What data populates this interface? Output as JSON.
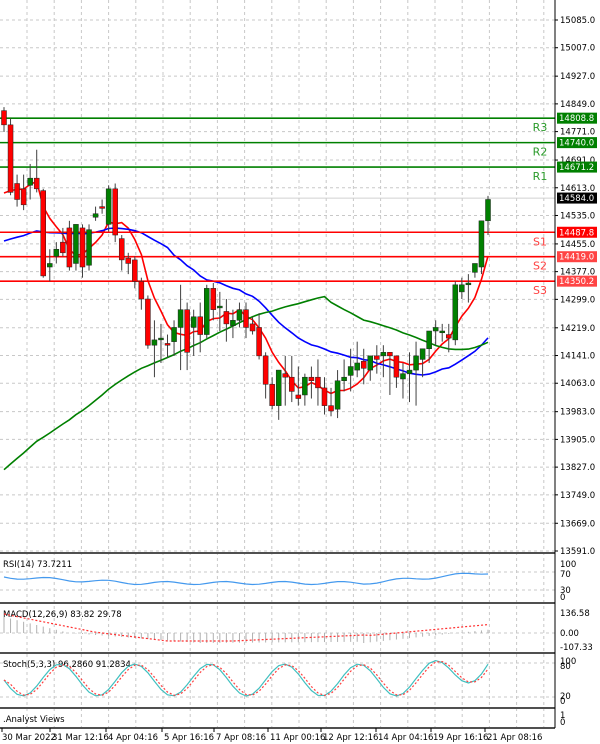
{
  "chart_data": {
    "type": "candlestick",
    "title": "",
    "price_axis": {
      "ticks": [
        15085.0,
        15007.0,
        14927.0,
        14849.0,
        14771.0,
        14691.0,
        14613.0,
        14535.0,
        14455.0,
        14377.0,
        14299.0,
        14219.0,
        14141.0,
        14063.0,
        13983.0,
        13905.0,
        13827.0,
        13749.0,
        13669.0,
        13591.0
      ],
      "range": [
        13591.0,
        15140.0
      ]
    },
    "current_price": 14584.0,
    "levels": [
      {
        "name": "R3",
        "value": 14808.8,
        "color": "#008000",
        "type": "resistance"
      },
      {
        "name": "R2",
        "value": 14740.0,
        "color": "#008000",
        "type": "resistance"
      },
      {
        "name": "R1",
        "value": 14671.2,
        "color": "#008000",
        "type": "resistance"
      },
      {
        "name": "S1",
        "value": 14487.8,
        "color": "#ff0000",
        "type": "support"
      },
      {
        "name": "S2",
        "value": 14419.0,
        "color": "#ff0000",
        "type": "support"
      },
      {
        "name": "S3",
        "value": 14350.2,
        "color": "#ff0000",
        "type": "support"
      }
    ],
    "time_axis": [
      "30 Mar 2022",
      "31 Mar 12:16",
      "4 Apr 04:16",
      "5 Apr 16:16",
      "7 Apr 08:16",
      "11 Apr 00:16",
      "12 Apr 12:16",
      "14 Apr 04:16",
      "19 Apr 16:16",
      "21 Apr 08:16"
    ],
    "candles": [
      [
        14830,
        14840,
        14790,
        14770
      ],
      [
        14790,
        14808,
        14600,
        14592
      ],
      [
        14625,
        14650,
        14580,
        14560
      ],
      [
        14610,
        14650,
        14565,
        14550
      ],
      [
        14620,
        14680,
        14640,
        14580
      ],
      [
        14640,
        14720,
        14610,
        14600
      ],
      [
        14605,
        14610,
        14365,
        14360
      ],
      [
        14390,
        14440,
        14400,
        14350
      ],
      [
        14420,
        14460,
        14440,
        14400
      ],
      [
        14460,
        14500,
        14430,
        14420
      ],
      [
        14500,
        14520,
        14390,
        14380
      ],
      [
        14400,
        14510,
        14510,
        14380
      ],
      [
        14500,
        14510,
        14390,
        14360
      ],
      [
        14395,
        14510,
        14495,
        14380
      ],
      [
        14530,
        14560,
        14540,
        14520
      ],
      [
        14560,
        14580,
        14555,
        14540
      ],
      [
        14510,
        14620,
        14610,
        14490
      ],
      [
        14610,
        14625,
        14480,
        14460
      ],
      [
        14470,
        14480,
        14410,
        14380
      ],
      [
        14415,
        14430,
        14400,
        14370
      ],
      [
        14410,
        14420,
        14350,
        14330
      ],
      [
        14350,
        14360,
        14300,
        14270
      ],
      [
        14300,
        14310,
        14170,
        14160
      ],
      [
        14170,
        14240,
        14185,
        14080
      ],
      [
        14185,
        14230,
        14190,
        14120
      ],
      [
        14175,
        14200,
        14170,
        14135
      ],
      [
        14180,
        14240,
        14220,
        14140
      ],
      [
        14220,
        14340,
        14270,
        14100
      ],
      [
        14270,
        14290,
        14150,
        14100
      ],
      [
        14220,
        14270,
        14250,
        14140
      ],
      [
        14250,
        14290,
        14200,
        14150
      ],
      [
        14200,
        14340,
        14330,
        14190
      ],
      [
        14330,
        14345,
        14270,
        14240
      ],
      [
        14275,
        14320,
        14280,
        14210
      ],
      [
        14265,
        14300,
        14230,
        14180
      ],
      [
        14225,
        14270,
        14240,
        14190
      ],
      [
        14240,
        14290,
        14270,
        14220
      ],
      [
        14270,
        14290,
        14220,
        14190
      ],
      [
        14230,
        14250,
        14210,
        14200
      ],
      [
        14220,
        14260,
        14140,
        14130
      ],
      [
        14140,
        14150,
        14060,
        14020
      ],
      [
        14060,
        14080,
        14000,
        13990
      ],
      [
        14000,
        14090,
        14100,
        13960
      ],
      [
        14090,
        14140,
        14080,
        14000
      ],
      [
        14080,
        14140,
        14040,
        14010
      ],
      [
        14030,
        14110,
        14020,
        14000
      ],
      [
        14030,
        14090,
        14080,
        14000
      ],
      [
        14080,
        14110,
        14070,
        14020
      ],
      [
        14080,
        14130,
        14050,
        14000
      ],
      [
        14050,
        14080,
        14000,
        13975
      ],
      [
        14000,
        14050,
        13985,
        13970
      ],
      [
        13990,
        14100,
        14070,
        13965
      ],
      [
        14070,
        14130,
        14080,
        14040
      ],
      [
        14085,
        14160,
        14110,
        14040
      ],
      [
        14100,
        14180,
        14120,
        14080
      ],
      [
        14125,
        14160,
        14105,
        14060
      ],
      [
        14100,
        14130,
        14140,
        14070
      ],
      [
        14140,
        14170,
        14130,
        14090
      ],
      [
        14140,
        14170,
        14150,
        14080
      ],
      [
        14150,
        14150,
        14140,
        14030
      ],
      [
        14140,
        14140,
        14080,
        14050
      ],
      [
        14075,
        14120,
        14090,
        14020
      ],
      [
        14090,
        14150,
        14100,
        14010
      ],
      [
        14100,
        14180,
        14140,
        14000
      ],
      [
        14130,
        14150,
        14160,
        14080
      ],
      [
        14160,
        14200,
        14210,
        14120
      ],
      [
        14210,
        14240,
        14220,
        14170
      ],
      [
        14205,
        14230,
        14210,
        14180
      ],
      [
        14200,
        14230,
        14190,
        14150
      ],
      [
        14185,
        14350,
        14340,
        14170
      ],
      [
        14320,
        14360,
        14340,
        14300
      ],
      [
        14340,
        14370,
        14345,
        14290
      ],
      [
        14375,
        14395,
        14400,
        14360
      ],
      [
        14390,
        14520,
        14520,
        14370
      ],
      [
        14520,
        14590,
        14580,
        14480
      ]
    ],
    "moving_averages": [
      {
        "name": "MA-red",
        "color": "#ff0000"
      },
      {
        "name": "MA-green",
        "color": "#008000"
      },
      {
        "name": "MA-blue",
        "color": "#0000ff"
      }
    ],
    "indicators": {
      "rsi": {
        "label": "RSI(14) 73.7211",
        "levels": [
          "100",
          "70",
          "30",
          "0"
        ]
      },
      "macd": {
        "label": "MACD(12,26,9) 83.82 29.78",
        "levels": [
          "136.58",
          "0.00",
          "-107.33"
        ]
      },
      "stoch": {
        "label": "Stoch(5,3,3) 96.2860 91.2834",
        "levels": [
          "100",
          "80",
          "20",
          "0"
        ]
      },
      "analyst": {
        "label": ".Analyst Views",
        "levels": [
          "1",
          "0"
        ]
      }
    }
  },
  "price_tags": {
    "r3": "14808.8",
    "r2": "14740.0",
    "r1": "14671.2",
    "current": "14584.0",
    "s1": "14487.8",
    "s2": "14419.0",
    "s3": "14350.2"
  }
}
